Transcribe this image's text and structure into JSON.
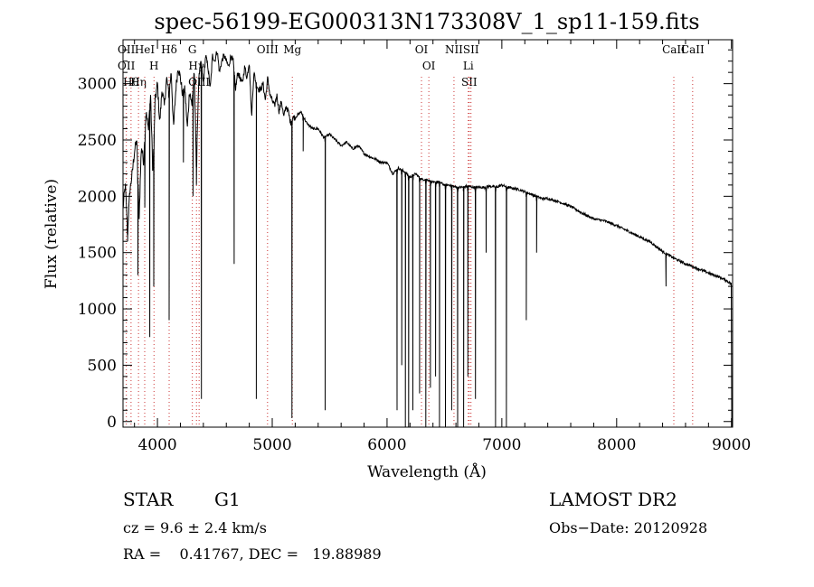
{
  "chart_data": {
    "type": "line",
    "title": "spec-56199-EG000313N173308V_1_sp11-159.fits",
    "xlabel": "Wavelength (Å)",
    "ylabel": "Flux (relative)",
    "xlim": [
      3700,
      9010
    ],
    "ylim": [
      -50,
      3390
    ],
    "x_ticks": [
      4000,
      5000,
      6000,
      7000,
      8000,
      9000
    ],
    "y_ticks": [
      0,
      500,
      1000,
      1500,
      2000,
      2500,
      3000
    ],
    "series": [
      {
        "x": [
          3700,
          3720,
          3740,
          3760,
          3780,
          3800,
          3820,
          3840,
          3860,
          3880,
          3900,
          3920,
          3940,
          3960,
          3980,
          4000,
          4020,
          4040,
          4060,
          4080,
          4100,
          4120,
          4140,
          4160,
          4180,
          4200,
          4220,
          4240,
          4260,
          4280,
          4300,
          4320,
          4340,
          4360,
          4380,
          4400,
          4420,
          4440,
          4460,
          4480,
          4500,
          4520,
          4540,
          4560,
          4580,
          4600,
          4620,
          4640,
          4660,
          4680,
          4700,
          4720,
          4740,
          4760,
          4780,
          4800,
          4820,
          4840,
          4860,
          4880,
          4900,
          4920,
          4940,
          4960,
          4980,
          5000,
          5020,
          5040,
          5060,
          5080,
          5100,
          5120,
          5140,
          5160,
          5180,
          5200,
          5250,
          5300,
          5350,
          5400,
          5450,
          5500,
          5550,
          5600,
          5650,
          5700,
          5750,
          5800,
          5850,
          5900,
          5950,
          6000,
          6050,
          6100,
          6150,
          6200,
          6250,
          6300,
          6350,
          6400,
          6450,
          6500,
          6550,
          6600,
          6650,
          6700,
          6750,
          6800,
          6850,
          6900,
          6950,
          7000,
          7050,
          7100,
          7150,
          7200,
          7250,
          7300,
          7350,
          7400,
          7500,
          7600,
          7700,
          7800,
          7900,
          8000,
          8100,
          8200,
          8300,
          8400,
          8500,
          8600,
          8700,
          8800,
          8900,
          8960,
          9000
        ],
        "y": [
          1900,
          2100,
          1700,
          2050,
          2200,
          2400,
          2500,
          1800,
          2450,
          2300,
          2750,
          2600,
          2900,
          2200,
          2850,
          3000,
          2650,
          2950,
          2800,
          3050,
          2900,
          3100,
          2600,
          2950,
          3150,
          3050,
          2900,
          2950,
          2600,
          2950,
          2800,
          3100,
          2300,
          3050,
          3200,
          3000,
          3250,
          3150,
          2950,
          3250,
          3200,
          3300,
          3100,
          3200,
          3250,
          3200,
          3150,
          3250,
          3200,
          2950,
          3100,
          3050,
          3000,
          3150,
          3050,
          3200,
          2700,
          3100,
          3000,
          2950,
          2950,
          3000,
          2850,
          3050,
          2900,
          2850,
          2800,
          2900,
          2750,
          2850,
          2700,
          2800,
          2750,
          2650,
          2700,
          2700,
          2750,
          2650,
          2600,
          2600,
          2520,
          2550,
          2500,
          2450,
          2480,
          2420,
          2450,
          2380,
          2350,
          2330,
          2300,
          2300,
          2200,
          2250,
          2220,
          2170,
          2200,
          2150,
          2150,
          2120,
          2130,
          2100,
          2100,
          2080,
          2080,
          2090,
          2080,
          2080,
          2080,
          2090,
          2080,
          2100,
          2080,
          2070,
          2060,
          2040,
          2020,
          2000,
          1980,
          1980,
          1950,
          1910,
          1850,
          1800,
          1780,
          1740,
          1690,
          1640,
          1590,
          1510,
          1450,
          1400,
          1360,
          1320,
          1280,
          1250,
          1220
        ]
      }
    ],
    "absorption_dips": [
      {
        "x": 3740,
        "y": 1600
      },
      {
        "x": 3830,
        "y": 1300
      },
      {
        "x": 3890,
        "y": 1900
      },
      {
        "x": 3933,
        "y": 750
      },
      {
        "x": 3968,
        "y": 1200
      },
      {
        "x": 4102,
        "y": 900
      },
      {
        "x": 4226,
        "y": 2300
      },
      {
        "x": 4310,
        "y": 2000
      },
      {
        "x": 4340,
        "y": 2100
      },
      {
        "x": 4383,
        "y": 200
      },
      {
        "x": 4668,
        "y": 1400
      },
      {
        "x": 4861,
        "y": 200
      },
      {
        "x": 5172,
        "y": 30
      },
      {
        "x": 5269,
        "y": 2400
      },
      {
        "x": 5461,
        "y": 100
      },
      {
        "x": 6087,
        "y": 100
      },
      {
        "x": 6128,
        "y": 500
      },
      {
        "x": 6160,
        "y": -50
      },
      {
        "x": 6188,
        "y": -50
      },
      {
        "x": 6225,
        "y": 100
      },
      {
        "x": 6283,
        "y": 250
      },
      {
        "x": 6338,
        "y": -50
      },
      {
        "x": 6378,
        "y": 300
      },
      {
        "x": 6423,
        "y": 400
      },
      {
        "x": 6457,
        "y": -50
      },
      {
        "x": 6509,
        "y": -50
      },
      {
        "x": 6563,
        "y": 100
      },
      {
        "x": 6615,
        "y": -50
      },
      {
        "x": 6667,
        "y": -50
      },
      {
        "x": 6704,
        "y": 400
      },
      {
        "x": 6770,
        "y": 200
      },
      {
        "x": 6863,
        "y": 1500
      },
      {
        "x": 6945,
        "y": -50
      },
      {
        "x": 7040,
        "y": -50
      },
      {
        "x": 7213,
        "y": 900
      },
      {
        "x": 7303,
        "y": 1500
      },
      {
        "x": 8430,
        "y": 1200
      }
    ],
    "line_markers": [
      {
        "x": 3729,
        "labels": [
          "OII",
          "OII"
        ]
      },
      {
        "x": 3770,
        "labels": [
          "Hθ"
        ]
      },
      {
        "x": 3835,
        "labels": [
          "Hη"
        ]
      },
      {
        "x": 3889,
        "labels": [
          "HeI"
        ]
      },
      {
        "x": 3970,
        "labels": [
          "H"
        ]
      },
      {
        "x": 4102,
        "labels": [
          "Hδ"
        ]
      },
      {
        "x": 4304,
        "labels": [
          "G"
        ]
      },
      {
        "x": 4340,
        "labels": [
          "Hγ"
        ]
      },
      {
        "x": 4363,
        "labels": [
          "OIII"
        ]
      },
      {
        "x": 4959,
        "labels": [
          "OIII"
        ]
      },
      {
        "x": 5175,
        "labels": [
          "Mg"
        ]
      },
      {
        "x": 6300,
        "labels": [
          "OI"
        ]
      },
      {
        "x": 6364,
        "labels": [
          "OI"
        ]
      },
      {
        "x": 6583,
        "labels": [
          "NII"
        ]
      },
      {
        "x": 6708,
        "labels": [
          "Li"
        ]
      },
      {
        "x": 6716,
        "labels": [
          "SII"
        ]
      },
      {
        "x": 6731,
        "labels": [
          "SII"
        ]
      },
      {
        "x": 8498,
        "labels": [
          "CaII"
        ]
      },
      {
        "x": 8662,
        "labels": [
          "CaII"
        ]
      }
    ]
  },
  "info": {
    "object_class": "STAR",
    "subclass": "G1",
    "survey": "LAMOST DR2",
    "cz_text": "cz = 9.6 ± 2.4 km/s",
    "obs_date_text": "Obs−Date: 20120928",
    "radec_text": "RA =    0.41767, DEC =   19.88989"
  },
  "colors": {
    "spectrum": "#000000",
    "marker_lines": "#cc3333",
    "axes": "#000000"
  }
}
